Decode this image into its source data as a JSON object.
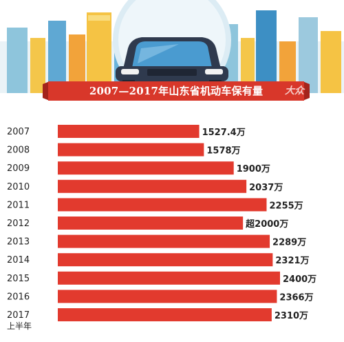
{
  "title": "2007—2017年山东省机动车保有量",
  "colors": {
    "bar": "#e23a2e",
    "banner": "#d8372a",
    "banner_dark": "#a4241c",
    "car": "#2f3a4e",
    "sky_circle": "#dcecf4"
  },
  "chart_data": {
    "type": "bar",
    "orientation": "horizontal",
    "categories": [
      "2007",
      "2008",
      "2009",
      "2010",
      "2011",
      "2012",
      "2013",
      "2014",
      "2015",
      "2016",
      "2017"
    ],
    "category_notes": [
      "",
      "",
      "",
      "",
      "",
      "",
      "",
      "",
      "",
      "",
      "上半年"
    ],
    "values": [
      1527.4,
      1578,
      1900,
      2037,
      2255,
      2000,
      2289,
      2321,
      2400,
      2366,
      2310
    ],
    "value_labels": [
      "1527.4",
      "1578",
      "1900",
      "2037",
      "2255",
      "2000",
      "2289",
      "2321",
      "2400",
      "2366",
      "2310"
    ],
    "value_prefixes": [
      "",
      "",
      "",
      "",
      "",
      "超",
      "",
      "",
      "",
      "",
      ""
    ],
    "unit": "万",
    "title": "2007—2017年山东省机动车保有量",
    "xlabel": "",
    "ylabel": "",
    "grid": false,
    "legend": "none"
  }
}
